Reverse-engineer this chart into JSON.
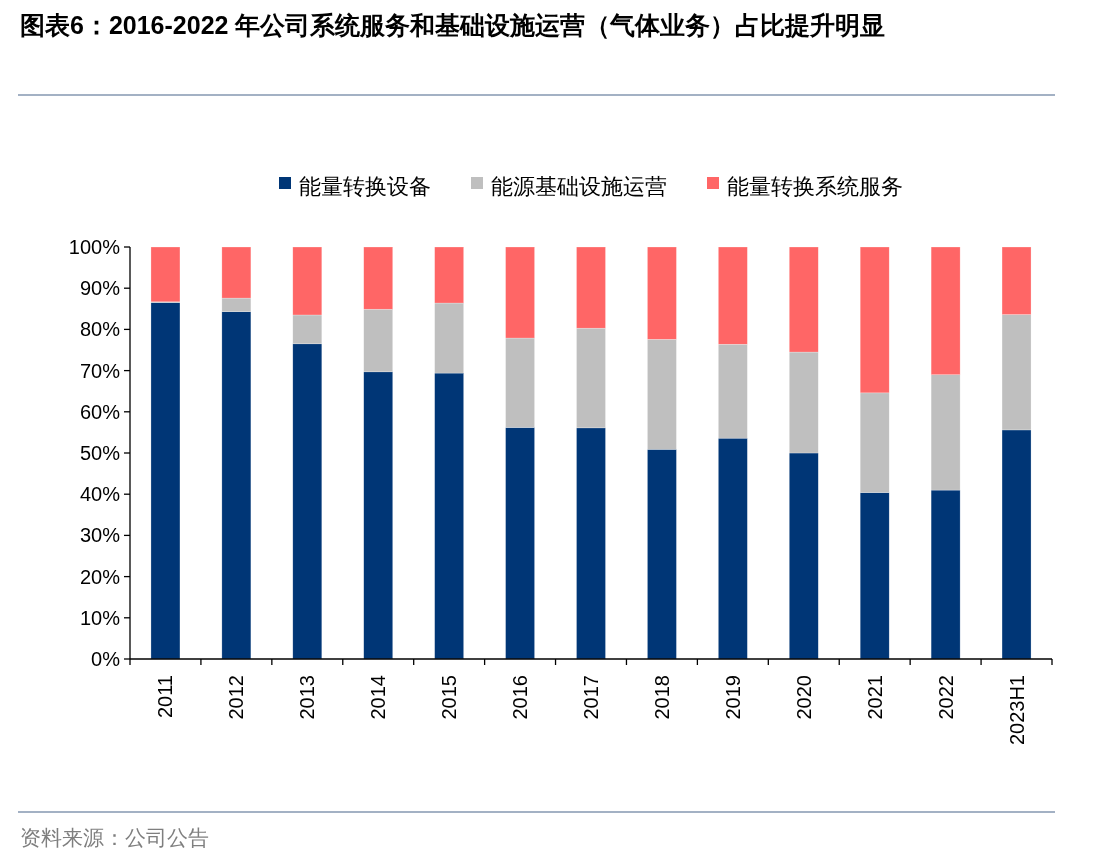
{
  "chart_data": {
    "type": "bar",
    "stacked": true,
    "title": "图表6：2016-2022 年公司系统服务和基础设施运营（气体业务）占比提升明显",
    "categories": [
      "2011",
      "2012",
      "2013",
      "2014",
      "2015",
      "2016",
      "2017",
      "2018",
      "2019",
      "2020",
      "2021",
      "2022",
      "2023H1"
    ],
    "series": [
      {
        "name": "能量转换设备",
        "color": "#003676",
        "values": [
          86.5,
          84.3,
          76.5,
          69.7,
          69.4,
          56.2,
          56.1,
          50.9,
          53.6,
          50.0,
          40.4,
          41.0,
          55.6
        ]
      },
      {
        "name": "能源基础设施运营",
        "color": "#bfbfbf",
        "values": [
          0.2,
          3.3,
          7.0,
          15.2,
          17.0,
          21.7,
          24.2,
          26.7,
          22.8,
          24.5,
          24.2,
          28.0,
          28.0
        ]
      },
      {
        "name": "能量转换系统服务",
        "color": "#ff6666",
        "values": [
          13.3,
          12.4,
          16.5,
          15.1,
          13.6,
          22.1,
          19.7,
          22.4,
          23.6,
          25.5,
          35.4,
          31.0,
          16.4
        ]
      }
    ],
    "ylim": [
      0,
      100
    ],
    "yticks": [
      {
        "value": 0,
        "label": "0%"
      },
      {
        "value": 10,
        "label": "10%"
      },
      {
        "value": 20,
        "label": "20%"
      },
      {
        "value": 30,
        "label": "30%"
      },
      {
        "value": 40,
        "label": "40%"
      },
      {
        "value": 50,
        "label": "50%"
      },
      {
        "value": 60,
        "label": "60%"
      },
      {
        "value": 70,
        "label": "70%"
      },
      {
        "value": 80,
        "label": "80%"
      },
      {
        "value": 90,
        "label": "90%"
      },
      {
        "value": 100,
        "label": "100%"
      }
    ],
    "legend": "top",
    "grid": false,
    "annotations": [
      "资料来源：公司公告"
    ]
  }
}
